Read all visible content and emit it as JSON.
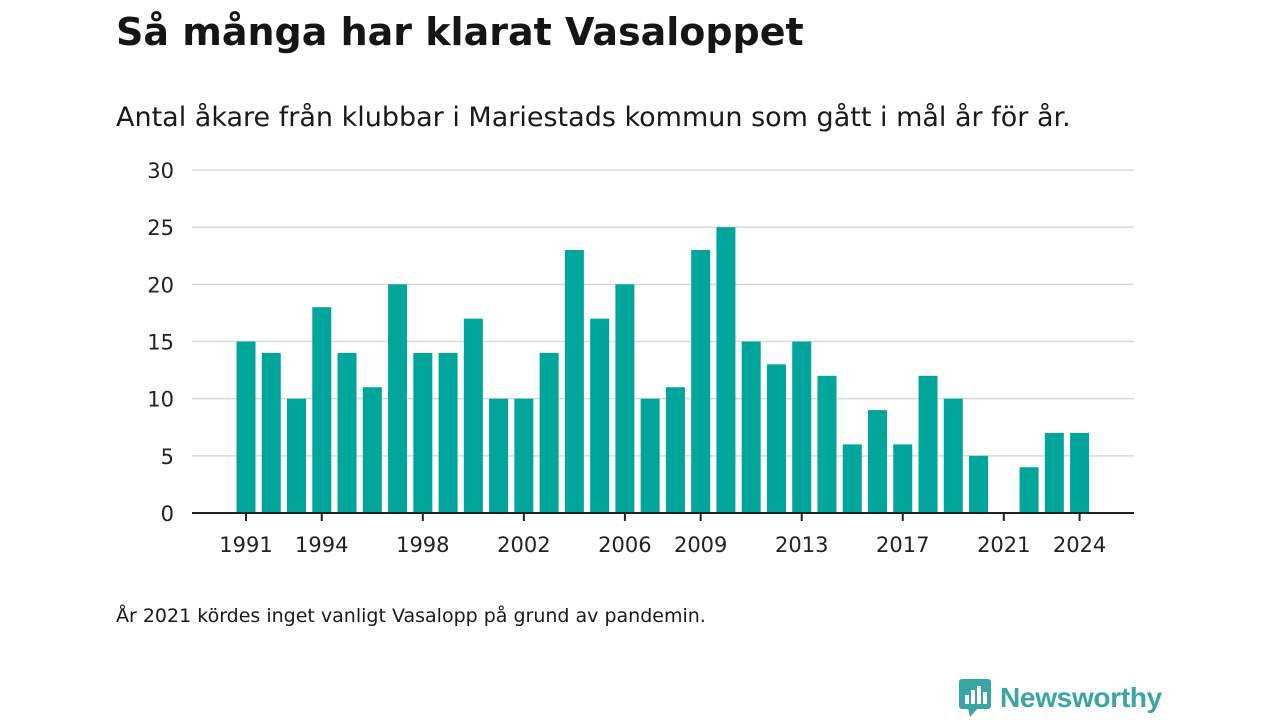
{
  "title": "Så många har klarat Vasaloppet",
  "subtitle": "Antal åkare från klubbar i Mariestads kommun som gått i mål år för år.",
  "note": "År 2021 kördes inget vanligt Vasalopp på grund av pandemin.",
  "brand": {
    "name": "Newsworthy",
    "icon": "bar-chart-speech-bubble-icon",
    "color": "#3aa6a4"
  },
  "colors": {
    "bar": "#00a59b",
    "grid": "#d9d9d9",
    "axis": "#222222"
  },
  "chart_data": {
    "type": "bar",
    "x": [
      1991,
      1992,
      1993,
      1994,
      1995,
      1996,
      1997,
      1998,
      1999,
      2000,
      2001,
      2002,
      2003,
      2004,
      2005,
      2006,
      2007,
      2008,
      2009,
      2010,
      2011,
      2012,
      2013,
      2014,
      2015,
      2016,
      2017,
      2018,
      2019,
      2020,
      2021,
      2022,
      2023,
      2024
    ],
    "values": [
      15,
      14,
      10,
      18,
      14,
      11,
      20,
      14,
      14,
      17,
      10,
      10,
      14,
      23,
      17,
      20,
      10,
      11,
      23,
      25,
      15,
      13,
      15,
      12,
      6,
      9,
      6,
      12,
      10,
      5,
      0,
      4,
      7,
      7
    ],
    "x_tick_labels": [
      "1991",
      "1994",
      "1998",
      "2002",
      "2006",
      "2009",
      "2013",
      "2017",
      "2021",
      "2024"
    ],
    "y_ticks": [
      0,
      5,
      10,
      15,
      20,
      25,
      30
    ],
    "ylim": [
      0,
      30
    ],
    "grid": true,
    "xlabel": "",
    "ylabel": ""
  }
}
